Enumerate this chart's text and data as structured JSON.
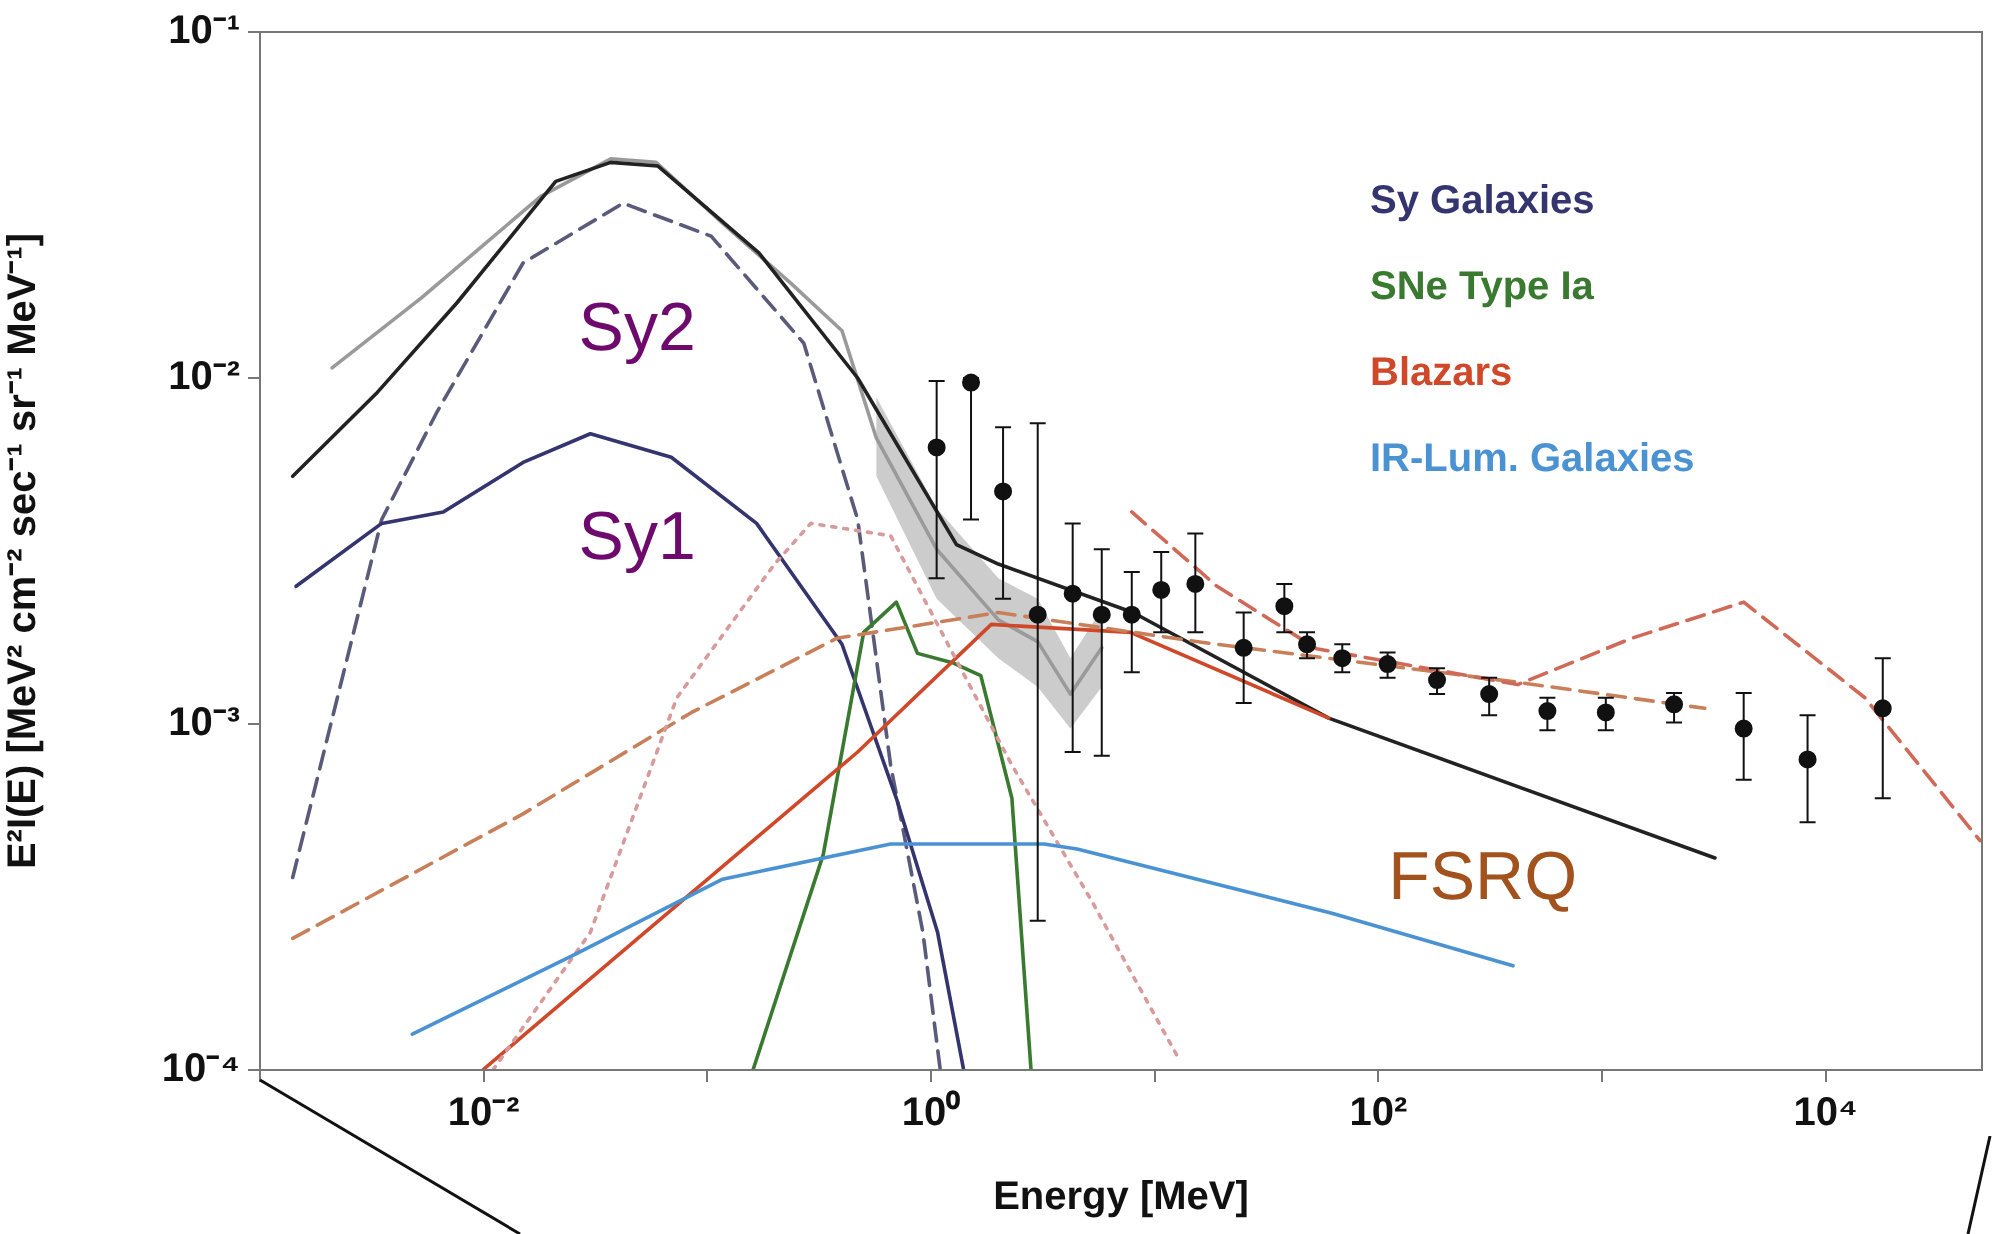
{
  "chart_data": {
    "type": "line",
    "log": "xy",
    "xlabel": "Energy [MeV]",
    "ylabel": "E²I(E) [MeV² cm⁻² sec⁻¹ sr⁻¹ MeV⁻¹]",
    "xlim": [
      0.001,
      50000
    ],
    "ylim": [
      0.0001,
      0.1
    ],
    "xticks": [
      {
        "value": 0.001,
        "label": null
      },
      {
        "value": 0.01,
        "label": "10⁻²"
      },
      {
        "value": 0.1,
        "label": null
      },
      {
        "value": 1,
        "label": "10⁰"
      },
      {
        "value": 10,
        "label": null
      },
      {
        "value": 100,
        "label": "10²"
      },
      {
        "value": 1000,
        "label": null
      },
      {
        "value": 10000,
        "label": "10⁴"
      }
    ],
    "yticks": [
      {
        "value": 0.0001,
        "label": "10⁻⁴"
      },
      {
        "value": 0.001,
        "label": "10⁻³"
      },
      {
        "value": 0.01,
        "label": "10⁻²"
      },
      {
        "value": 0.1,
        "label": "10⁻¹"
      }
    ],
    "grid": false,
    "legend": "top right",
    "annotations": [
      "Sy2",
      "Sy1",
      "FSRQ"
    ],
    "series": [
      {
        "type": "line",
        "color": "#9a9a9a",
        "marker": "none",
        "line_style": "solid",
        "x": [
          0.0021,
          0.0053,
          0.0093,
          0.018,
          0.037,
          0.059,
          0.117,
          0.236,
          0.4,
          0.57,
          1.06,
          2.0,
          3.0,
          4.2,
          5.8
        ],
        "values": [
          0.0107,
          0.0171,
          0.0233,
          0.0335,
          0.043,
          0.042,
          0.028,
          0.0188,
          0.0137,
          0.0067,
          0.0032,
          0.002,
          0.00173,
          0.00122,
          0.00166
        ],
        "lower": [
          null,
          null,
          null,
          null,
          null,
          null,
          null,
          null,
          null,
          0.0052,
          0.0023,
          0.00155,
          0.00128,
          0.00097,
          0.00128
        ],
        "upper": [
          null,
          null,
          null,
          null,
          null,
          null,
          null,
          null,
          null,
          0.0088,
          0.0042,
          0.00264,
          0.0023,
          0.00155,
          0.00215
        ]
      },
      {
        "type": "line",
        "color": "#222222",
        "marker": "none",
        "line_style": "solid",
        "x": [
          0.0014,
          0.0033,
          0.0076,
          0.021,
          0.037,
          0.06,
          0.17,
          0.47,
          1.3,
          2,
          8,
          60,
          3200
        ],
        "values": [
          0.0052,
          0.009,
          0.0165,
          0.037,
          0.042,
          0.041,
          0.023,
          0.01,
          0.0033,
          0.0029,
          0.0021,
          0.00104,
          0.00041
        ]
      },
      {
        "type": "line",
        "color": "#5a5a7a",
        "marker": "none",
        "line_style": "dashed",
        "x": [
          0.0014,
          0.0035,
          0.0062,
          0.015,
          0.042,
          0.104,
          0.27,
          0.47,
          0.66,
          0.92,
          1.1
        ],
        "values": [
          0.00036,
          0.0039,
          0.008,
          0.0215,
          0.032,
          0.0257,
          0.0126,
          0.0039,
          0.00076,
          0.00025,
          0.0001
        ]
      },
      {
        "type": "line",
        "name": "Sy Galaxies",
        "color": "#34346e",
        "marker": "none",
        "line_style": "solid",
        "x": [
          0.00145,
          0.0035,
          0.0066,
          0.015,
          0.03,
          0.069,
          0.166,
          0.4,
          0.7,
          1.07,
          1.4
        ],
        "values": [
          0.0025,
          0.0038,
          0.0041,
          0.0057,
          0.0069,
          0.0059,
          0.0038,
          0.0017,
          0.00061,
          0.00025,
          0.0001
        ]
      },
      {
        "type": "line",
        "name": "SNe Type Ia",
        "color": "#3a7a30",
        "marker": "none",
        "line_style": "solid",
        "x": [
          0.16,
          0.33,
          0.5,
          0.7,
          0.87,
          1.26,
          1.67,
          2.3,
          2.8
        ],
        "values": [
          0.0001,
          0.00042,
          0.00184,
          0.00225,
          0.0016,
          0.0015,
          0.00138,
          0.00061,
          0.0001
        ]
      },
      {
        "type": "line",
        "name": "Blazars",
        "color": "#d0482a",
        "marker": "none",
        "line_style": "solid",
        "x": [
          0.0099,
          0.078,
          0.47,
          1.86,
          7.8,
          60
        ],
        "values": [
          0.0001,
          0.00031,
          0.00083,
          0.00194,
          0.00184,
          0.00104
        ]
      },
      {
        "type": "line",
        "color": "#c8805a",
        "marker": "none",
        "line_style": "dashed",
        "x": [
          0.0014,
          0.015,
          0.085,
          0.38,
          2,
          16.5,
          420,
          2880
        ],
        "values": [
          0.00024,
          0.00055,
          0.00108,
          0.00177,
          0.0021,
          0.00172,
          0.00132,
          0.00111
        ]
      },
      {
        "type": "line",
        "color": "#d06a58",
        "marker": "none",
        "line_style": "dashed",
        "x": [
          7.9,
          19,
          53,
          420,
          1360,
          4300,
          15000,
          49000
        ],
        "values": [
          0.0041,
          0.0025,
          0.00165,
          0.0013,
          0.00177,
          0.00225,
          0.00119,
          0.00046
        ]
      },
      {
        "type": "line",
        "color": "#d89a9a",
        "marker": "none",
        "line_style": "dotted",
        "x": [
          0.011,
          0.03,
          0.073,
          0.2,
          0.29,
          0.66,
          2.3,
          5.2,
          12.6
        ],
        "values": [
          0.0001,
          0.00025,
          0.00119,
          0.0029,
          0.0038,
          0.0035,
          0.00076,
          0.00031,
          0.00011
        ]
      },
      {
        "type": "line",
        "name": "IR-Lum. Galaxies",
        "color": "#4a92d2",
        "marker": "none",
        "line_style": "solid",
        "x": [
          0.0048,
          0.026,
          0.117,
          0.66,
          3.2,
          4.5,
          62,
          400
        ],
        "values": [
          0.000127,
          0.000217,
          0.000356,
          0.00045,
          0.00045,
          0.000435,
          0.000284,
          0.0002
        ]
      },
      {
        "type": "scatter",
        "color": "#111111",
        "marker": "circle",
        "x": [
          1.06,
          1.51,
          2.1,
          3.0,
          4.3,
          5.8,
          7.9,
          10.7,
          15.2,
          25,
          38,
          48,
          69,
          110,
          183,
          313,
          570,
          1040,
          2100,
          4300,
          8300,
          18000
        ],
        "values": [
          0.0063,
          0.0097,
          0.0047,
          0.00207,
          0.00238,
          0.00207,
          0.00207,
          0.00244,
          0.00254,
          0.00166,
          0.00219,
          0.0017,
          0.00155,
          0.00149,
          0.00134,
          0.00122,
          0.00109,
          0.00108,
          0.00114,
          0.00097,
          0.00079,
          0.00111
        ],
        "errors": [
          [
            0.00264,
            0.0098
          ],
          [
            0.0039,
            0.01
          ],
          [
            0.0023,
            0.0072
          ],
          [
            0.00027,
            0.0074
          ],
          [
            0.00083,
            0.0038
          ],
          [
            0.00081,
            0.0032
          ],
          [
            0.00141,
            0.00275
          ],
          [
            0.00184,
            0.00314
          ],
          [
            0.00184,
            0.00355
          ],
          [
            0.00115,
            0.0021
          ],
          [
            0.00184,
            0.00254
          ],
          [
            0.00155,
            0.00184
          ],
          [
            0.00141,
            0.0017
          ],
          [
            0.00136,
            0.00161
          ],
          [
            0.00122,
            0.00145
          ],
          [
            0.00106,
            0.00136
          ],
          [
            0.00096,
            0.00119
          ],
          [
            0.00096,
            0.00119
          ],
          [
            0.00101,
            0.00123
          ],
          [
            0.00069,
            0.00123
          ],
          [
            0.00052,
            0.00106
          ],
          [
            0.00061,
            0.00155
          ]
        ]
      }
    ]
  }
}
